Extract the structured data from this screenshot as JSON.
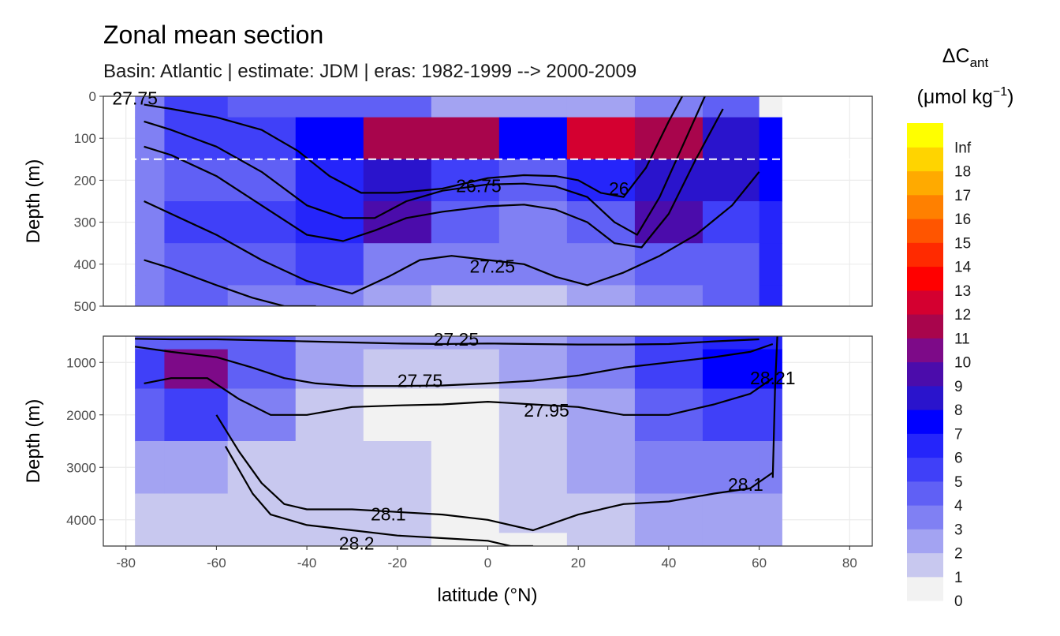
{
  "chart_data": {
    "type": "heatmap",
    "title": "Zonal mean section",
    "subtitle": "Basin: Atlantic | estimate: JDM  | eras: 1982-1999 --> 2000-2009",
    "xlabel": "latitude (°N)",
    "ylabel": "Depth (m)",
    "xlim": [
      -85,
      85
    ],
    "x_ticks": [
      "-80",
      "-60",
      "-40",
      "-20",
      "0",
      "20",
      "40",
      "60",
      "80"
    ],
    "legend": {
      "title_main": "ΔC",
      "title_sub": "ant",
      "unit_prefix": "(μmol kg",
      "unit_exp": "−1",
      "unit_suffix": ")",
      "labels": [
        "0",
        "1",
        "2",
        "3",
        "4",
        "5",
        "6",
        "7",
        "8",
        "9",
        "10",
        "11",
        "12",
        "13",
        "14",
        "15",
        "16",
        "17",
        "18",
        "Inf"
      ],
      "colors": [
        "#f2f2f2",
        "#c8c8ef",
        "#a3a3f2",
        "#8080f3",
        "#6060f5",
        "#4040f8",
        "#2525fa",
        "#0000ff",
        "#2a14cc",
        "#4b0cab",
        "#7d0a88",
        "#a8054c",
        "#d40030",
        "#ff0000",
        "#ff2a00",
        "#ff5500",
        "#ff8000",
        "#ffaa00",
        "#ffd400",
        "#ffff00"
      ]
    },
    "panels": [
      {
        "name": "upper",
        "ylim": [
          0,
          500
        ],
        "y_ticks": [
          0,
          100,
          200,
          300,
          400,
          500
        ],
        "reference_depth": 150,
        "lat_grid": [
          -78,
          -65,
          -50,
          -35,
          -20,
          -5,
          10,
          25,
          40,
          55,
          65
        ],
        "depth_grid": [
          0,
          100,
          200,
          300,
          400,
          500
        ],
        "cant": [
          [
            3,
            5,
            4,
            4,
            4,
            2,
            2,
            2,
            3,
            4,
            0
          ],
          [
            3,
            5,
            5,
            7,
            11,
            11,
            7,
            12,
            11,
            8,
            7
          ],
          [
            3,
            4,
            4,
            6,
            8,
            5,
            4,
            6,
            8,
            8,
            7
          ],
          [
            3,
            5,
            5,
            6,
            9,
            4,
            3,
            4,
            9,
            5,
            6
          ],
          [
            3,
            4,
            4,
            5,
            3,
            3,
            3,
            3,
            4,
            4,
            6
          ],
          [
            3,
            4,
            3,
            3,
            2,
            1,
            1,
            2,
            3,
            4,
            6
          ]
        ],
        "isopycnals": [
          {
            "label": "",
            "lat": [
              -76,
              -70,
              -60,
              -50,
              -42,
              -35,
              -28,
              -20,
              -10,
              0,
              8,
              15,
              20,
              25,
              30,
              35,
              40,
              43
            ],
            "depth": [
              20,
              30,
              50,
              80,
              130,
              190,
              230,
              230,
              220,
              195,
              188,
              190,
              200,
              230,
              240,
              170,
              60,
              0
            ]
          },
          {
            "label": "26.75",
            "lat": [
              -76,
              -70,
              -60,
              -50,
              -40,
              -32,
              -25,
              -18,
              -10,
              0,
              8,
              15,
              22,
              28,
              33,
              38,
              43,
              48
            ],
            "depth": [
              60,
              80,
              120,
              180,
              260,
              290,
              290,
              250,
              225,
              210,
              208,
              215,
              240,
              300,
              330,
              240,
              120,
              0
            ]
          },
          {
            "label": "",
            "lat": [
              -76,
              -70,
              -60,
              -50,
              -40,
              -32,
              -25,
              -18,
              -10,
              0,
              8,
              15,
              22,
              28,
              34,
              40,
              46,
              52
            ],
            "depth": [
              120,
              140,
              190,
              260,
              330,
              345,
              320,
              290,
              275,
              262,
              258,
              270,
              300,
              350,
              360,
              280,
              150,
              30
            ]
          },
          {
            "label": "27.25",
            "lat": [
              -76,
              -70,
              -60,
              -50,
              -40,
              -30,
              -22,
              -15,
              -8,
              0,
              8,
              15,
              22,
              30,
              38,
              46,
              54,
              60
            ],
            "depth": [
              250,
              280,
              330,
              390,
              440,
              470,
              430,
              390,
              380,
              390,
              400,
              430,
              450,
              420,
              380,
              330,
              260,
              180
            ]
          },
          {
            "label": "",
            "lat": [
              -76,
              -70,
              -60,
              -52,
              -45,
              -38
            ],
            "depth": [
              390,
              410,
              450,
              480,
              500,
              500
            ]
          }
        ],
        "contour_labels": [
          {
            "text": "27.75",
            "lat": -78,
            "depth": 5
          },
          {
            "text": "26.75",
            "lat": -2,
            "depth": 213
          },
          {
            "text": "26",
            "lat": 29,
            "depth": 220
          },
          {
            "text": "27.25",
            "lat": 1,
            "depth": 405
          }
        ]
      },
      {
        "name": "lower",
        "ylim": [
          500,
          4500
        ],
        "y_ticks": [
          1000,
          2000,
          3000,
          4000
        ],
        "lat_grid": [
          -78,
          -65,
          -50,
          -35,
          -20,
          -5,
          10,
          25,
          40,
          55,
          65
        ],
        "depth_grid": [
          500,
          1000,
          2000,
          3000,
          4000,
          4500
        ],
        "cant": [
          [
            4,
            4,
            4,
            2,
            2,
            2,
            2,
            3,
            5,
            6,
            6
          ],
          [
            5,
            10,
            4,
            2,
            1,
            1,
            2,
            3,
            5,
            7,
            7
          ],
          [
            4,
            5,
            3,
            1,
            0,
            0,
            1,
            2,
            4,
            5,
            5
          ],
          [
            2,
            2,
            1,
            1,
            1,
            0,
            1,
            2,
            3,
            3,
            3
          ],
          [
            1,
            1,
            1,
            1,
            1,
            0,
            1,
            1,
            2,
            2,
            2
          ],
          [
            1,
            1,
            1,
            1,
            1,
            0,
            0,
            1,
            2,
            2,
            2
          ]
        ],
        "isopycnals": [
          {
            "label": "27.25",
            "lat": [
              -78,
              -70,
              -60,
              -50,
              -40,
              -30,
              -20,
              -10,
              0,
              10,
              20,
              30,
              40,
              50,
              60
            ],
            "depth": [
              550,
              560,
              560,
              580,
              600,
              620,
              640,
              650,
              640,
              650,
              660,
              660,
              650,
              600,
              560
            ]
          },
          {
            "label": "27.75",
            "lat": [
              -78,
              -70,
              -60,
              -52,
              -45,
              -38,
              -30,
              -20,
              -10,
              0,
              10,
              20,
              30,
              40,
              50,
              58,
              63
            ],
            "depth": [
              700,
              800,
              900,
              1100,
              1300,
              1400,
              1450,
              1450,
              1440,
              1400,
              1350,
              1250,
              1100,
              1000,
              900,
              800,
              650
            ]
          },
          {
            "label": "27.95",
            "lat": [
              -76,
              -70,
              -62,
              -55,
              -48,
              -40,
              -30,
              -20,
              -10,
              0,
              10,
              20,
              30,
              40,
              50,
              58,
              63
            ],
            "depth": [
              1400,
              1300,
              1300,
              1700,
              2000,
              2000,
              1850,
              1820,
              1800,
              1750,
              1800,
              1850,
              2000,
              2000,
              1800,
              1600,
              1300
            ]
          },
          {
            "label": "28.1",
            "lat": [
              -60,
              -55,
              -50,
              -45,
              -40,
              -30,
              -20,
              -10,
              0,
              10,
              20,
              30,
              40,
              50,
              58,
              63
            ],
            "depth": [
              2000,
              2700,
              3300,
              3700,
              3800,
              3800,
              3850,
              3900,
              4000,
              4200,
              3900,
              3700,
              3650,
              3500,
              3400,
              3100
            ]
          },
          {
            "label": "28.2",
            "lat": [
              -58,
              -52,
              -48,
              -40,
              -30,
              -20,
              -10,
              0,
              5,
              10
            ],
            "depth": [
              2600,
              3500,
              3900,
              4100,
              4200,
              4300,
              4350,
              4400,
              4500,
              4500
            ]
          },
          {
            "label": "28.21",
            "lat": [
              63,
              63.5,
              64
            ],
            "depth": [
              3200,
              1500,
              500
            ]
          }
        ],
        "contour_labels": [
          {
            "text": "27.25",
            "lat": -7,
            "depth": 560
          },
          {
            "text": "27.75",
            "lat": -15,
            "depth": 1350
          },
          {
            "text": "27.95",
            "lat": 13,
            "depth": 1910
          },
          {
            "text": "28.1",
            "lat": -22,
            "depth": 3890
          },
          {
            "text": "28.1",
            "lat": 57,
            "depth": 3330
          },
          {
            "text": "28.2",
            "lat": -29,
            "depth": 4450
          },
          {
            "text": "28.21",
            "lat": 63,
            "depth": 1300
          }
        ]
      }
    ]
  }
}
